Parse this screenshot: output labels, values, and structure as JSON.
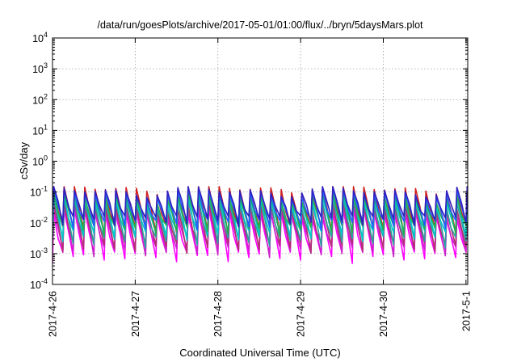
{
  "chart_data": {
    "type": "line",
    "title": "/data/run/goesPlots/archive/2017-05-01/01:00/flux/../bryn/5daysMars.plot",
    "xlabel": "Coordinated Universal Time (UTC)",
    "ylabel": "cSv/day",
    "y_scale": "log",
    "ylim": [
      0.0001,
      10000
    ],
    "y_ticks": [
      {
        "base": "10",
        "exp": "-4",
        "value": 0.0001
      },
      {
        "base": "10",
        "exp": "-3",
        "value": 0.001
      },
      {
        "base": "10",
        "exp": "-2",
        "value": 0.01
      },
      {
        "base": "10",
        "exp": "-1",
        "value": 0.1
      },
      {
        "base": "10",
        "exp": "0",
        "value": 1
      },
      {
        "base": "10",
        "exp": "1",
        "value": 10
      },
      {
        "base": "10",
        "exp": "2",
        "value": 100
      },
      {
        "base": "10",
        "exp": "3",
        "value": 1000
      },
      {
        "base": "10",
        "exp": "4",
        "value": 10000
      }
    ],
    "x_ticks": [
      "2017-4-26",
      "2017-4-27",
      "2017-4-28",
      "2017-4-29",
      "2017-4-30",
      "2017-5-1"
    ],
    "xlim": [
      "2017-04-26T00:00",
      "2017-05-01T00:30"
    ],
    "grid": true,
    "legend": "none",
    "series": [
      {
        "color": "#ff00ff",
        "peak": 0.02,
        "trough": 0.0008
      },
      {
        "color": "#cc22cc",
        "peak": 0.025,
        "trough": 0.0012
      },
      {
        "color": "#b03070",
        "peak": 0.035,
        "trough": 0.0016
      },
      {
        "color": "#d02020",
        "peak": 0.13,
        "trough": 0.006
      },
      {
        "color": "#2aa0a0",
        "peak": 0.045,
        "trough": 0.0025
      },
      {
        "color": "#00c8c8",
        "peak": 0.06,
        "trough": 0.004
      },
      {
        "color": "#20b050",
        "peak": 0.07,
        "trough": 0.006
      },
      {
        "color": "#2060ff",
        "peak": 0.09,
        "trough": 0.009
      },
      {
        "color": "#3020c0",
        "peak": 0.11,
        "trough": 0.012
      }
    ],
    "cycle_hours": 3
  }
}
